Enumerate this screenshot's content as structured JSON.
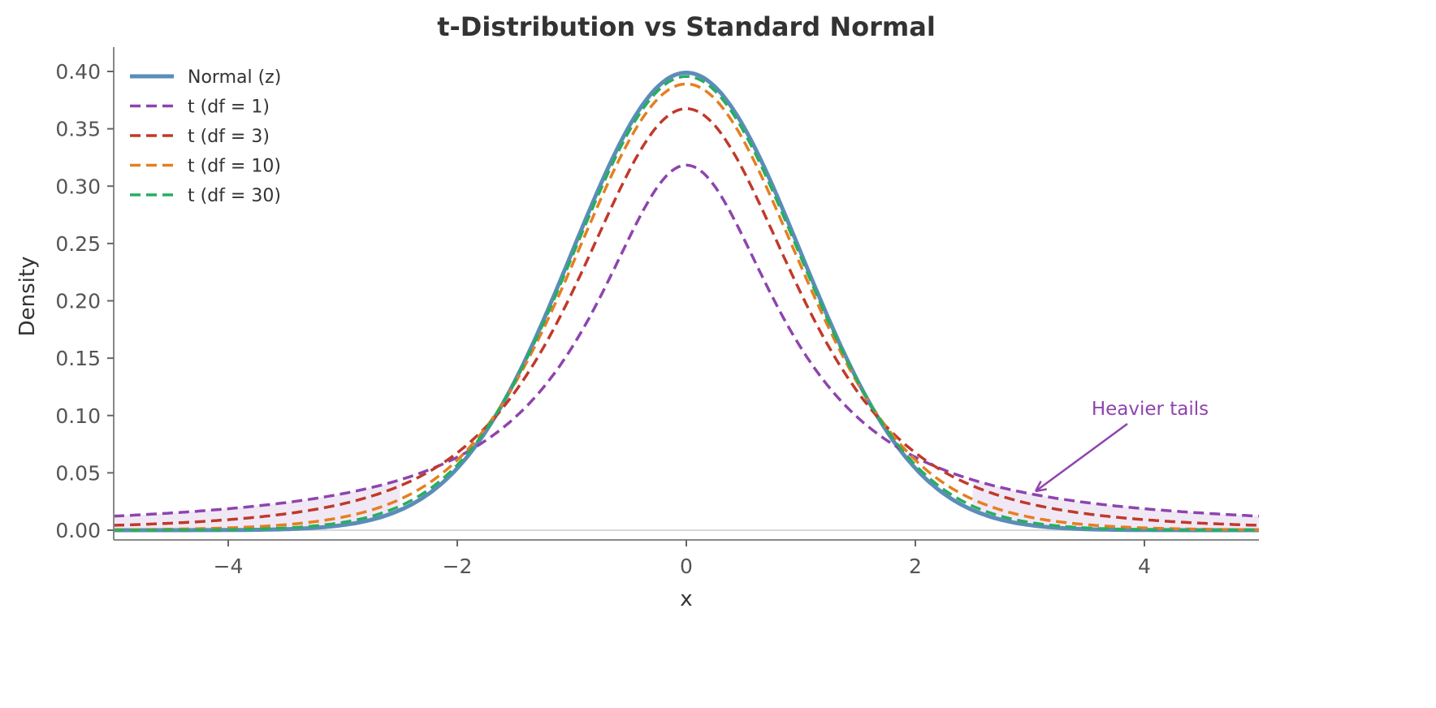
{
  "chart_data": {
    "type": "line",
    "title": "t-Distribution vs Standard Normal",
    "xlabel": "x",
    "ylabel": "Density",
    "xlim": [
      -5,
      5
    ],
    "ylim": [
      -0.008,
      0.42
    ],
    "xticks": [
      -4,
      -2,
      0,
      2,
      4
    ],
    "xtick_labels": [
      "−4",
      "−2",
      "0",
      "2",
      "4"
    ],
    "yticks": [
      0.0,
      0.05,
      0.1,
      0.15,
      0.2,
      0.25,
      0.3,
      0.35,
      0.4
    ],
    "ytick_labels": [
      "0.00",
      "0.05",
      "0.10",
      "0.15",
      "0.20",
      "0.25",
      "0.30",
      "0.35",
      "0.40"
    ],
    "grid": false,
    "legend_position": "top-left",
    "series": [
      {
        "name": "Normal (z)",
        "distribution": "normal",
        "color": "#5b8db8",
        "style": "solid",
        "peak": 0.399
      },
      {
        "name": "t (df = 1)",
        "distribution": "t",
        "df": 1,
        "color": "#8e44ad",
        "style": "dashed",
        "peak": 0.318
      },
      {
        "name": "t (df = 3)",
        "distribution": "t",
        "df": 3,
        "color": "#c0392b",
        "style": "dashed",
        "peak": 0.368
      },
      {
        "name": "t (df = 10)",
        "distribution": "t",
        "df": 10,
        "color": "#e67e22",
        "style": "dashed",
        "peak": 0.389
      },
      {
        "name": "t (df = 30)",
        "distribution": "t",
        "df": 30,
        "color": "#27ae60",
        "style": "dashed",
        "peak": 0.395
      }
    ],
    "shaded_tails": {
      "between": [
        "Normal (z)",
        "t (df = 1)"
      ],
      "where": "|x| > 2.5",
      "color": "#8e44ad",
      "opacity": 0.12
    },
    "annotation": {
      "text": "Heavier tails",
      "color": "#8e44ad",
      "arrow_to": [
        3.05,
        0.034
      ],
      "text_at": [
        4.0,
        0.105
      ]
    }
  }
}
